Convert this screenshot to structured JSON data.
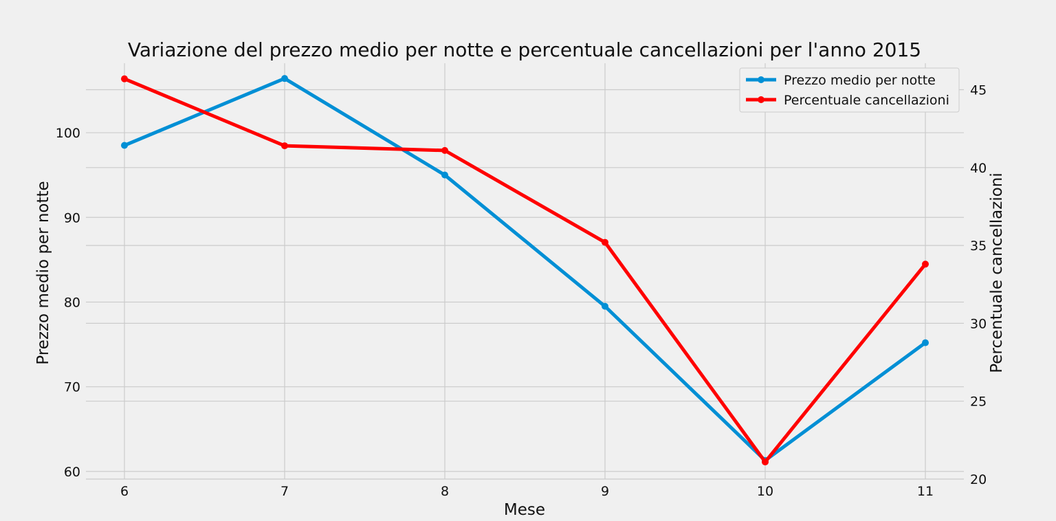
{
  "chart_data": {
    "type": "line",
    "title": "Variazione del prezzo medio per notte e percentuale cancellazioni per l'anno 2015",
    "xlabel": "Mese",
    "ylabel_left": "Prezzo medio per notte",
    "ylabel_right": "Percentuale cancellazioni",
    "x": [
      6,
      7,
      8,
      9,
      10,
      11
    ],
    "x_ticks": [
      "6",
      "7",
      "8",
      "9",
      "10",
      "11"
    ],
    "y_left_ticks": [
      "60",
      "70",
      "80",
      "90",
      "100"
    ],
    "y_right_ticks": [
      "20",
      "25",
      "30",
      "35",
      "40",
      "45"
    ],
    "ylim_left": [
      59.1,
      108.2
    ],
    "ylim_right": [
      20.0,
      46.7
    ],
    "grid": true,
    "legend_position": "top-right",
    "series": [
      {
        "name": "Prezzo medio per notte",
        "axis": "left",
        "color": "#008fd5",
        "values": [
          98.5,
          106.4,
          95.0,
          79.5,
          61.3,
          75.2
        ]
      },
      {
        "name": "Percentuale cancellazioni",
        "axis": "right",
        "color": "#ff0000",
        "values": [
          45.7,
          41.4,
          41.1,
          35.2,
          21.1,
          33.8
        ]
      }
    ]
  }
}
